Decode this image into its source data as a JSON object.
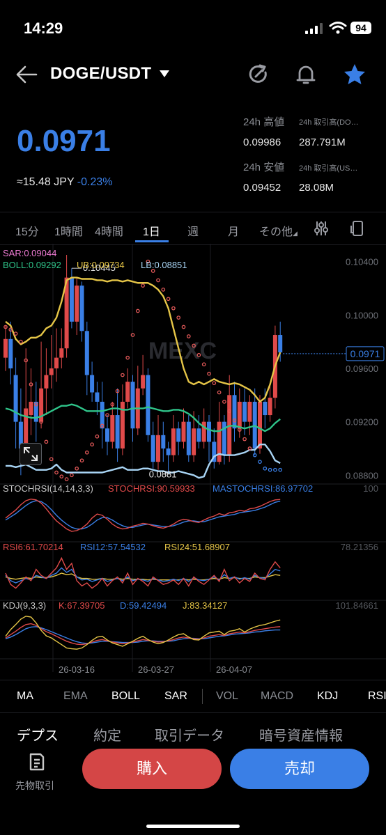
{
  "status_bar": {
    "time": "14:29",
    "battery": "94"
  },
  "header": {
    "pair": "DOGE/USDT"
  },
  "ticker": {
    "price": "0.0971",
    "jpy": "≈15.48 JPY",
    "change": "-0.23%",
    "high_label": "24h 高値",
    "high": "0.09986",
    "low_label": "24h 安値",
    "low": "0.09452",
    "vol1_label": "24h 取引高(DO…",
    "vol1": "287.791M",
    "vol2_label": "24h 取引高(US…",
    "vol2": "28.08M"
  },
  "timeframes": [
    "15分",
    "1時間",
    "4時間",
    "1日",
    "週",
    "月",
    "その他"
  ],
  "active_timeframe": "1日",
  "indicators_bottom": [
    "MA",
    "EMA",
    "BOLL",
    "SAR",
    "VOL",
    "MACD",
    "KDJ",
    "RSI"
  ],
  "bottom_tabs": [
    "デプス",
    "約定",
    "取引データ",
    "暗号資産情報"
  ],
  "actions": {
    "futures": "先物取引",
    "buy": "購入",
    "sell": "売却"
  },
  "colors": {
    "up": "#e04a4a",
    "down": "#3a7fe6",
    "accent": "#3a7fe6",
    "sar": "#e05858",
    "mid": "#2fc48a",
    "ub": "#e5c547",
    "lb": "#a8d4f4"
  },
  "chart_data": {
    "type": "candlestick",
    "main": {
      "legend": {
        "sar": "SAR:0.09044",
        "boll": "BOLL:0.09292",
        "ub": "UB:0.09734",
        "lb": "LB:0.08851"
      },
      "y_ticks": [
        "0.10400",
        "0.10000",
        "0.09600",
        "0.09200",
        "0.08800"
      ],
      "ylim": [
        0.0876,
        0.1045
      ],
      "current_price": "0.0971",
      "high_mark": "0.10445",
      "low_mark": "0.0881",
      "watermark": "MEXC",
      "candles": [
        [
          0.0968,
          0.0982,
          0.0992,
          0.0958
        ],
        [
          0.0982,
          0.096,
          0.0995,
          0.0948
        ],
        [
          0.0955,
          0.092,
          0.0968,
          0.09
        ],
        [
          0.092,
          0.09,
          0.0945,
          0.088
        ],
        [
          0.09,
          0.093,
          0.0975,
          0.0895
        ],
        [
          0.0925,
          0.0935,
          0.096,
          0.091
        ],
        [
          0.0935,
          0.092,
          0.095,
          0.0905
        ],
        [
          0.092,
          0.0945,
          0.098,
          0.0915
        ],
        [
          0.0945,
          0.0955,
          0.0975,
          0.0925
        ],
        [
          0.0955,
          0.096,
          0.0985,
          0.0945
        ],
        [
          0.096,
          0.0968,
          0.099,
          0.095
        ],
        [
          0.0968,
          0.0975,
          0.099,
          0.096
        ],
        [
          0.0975,
          0.1028,
          0.1045,
          0.0968
        ],
        [
          0.1028,
          0.0995,
          0.1035,
          0.099
        ],
        [
          0.0995,
          0.1022,
          0.1028,
          0.0985
        ],
        [
          0.1022,
          0.0988,
          0.1025,
          0.098
        ],
        [
          0.0988,
          0.0955,
          0.0995,
          0.094
        ],
        [
          0.0955,
          0.0942,
          0.0965,
          0.0935
        ],
        [
          0.0942,
          0.0935,
          0.095,
          0.0925
        ],
        [
          0.0935,
          0.0915,
          0.095,
          0.09
        ],
        [
          0.0915,
          0.0905,
          0.0925,
          0.0895
        ],
        [
          0.0905,
          0.0925,
          0.0935,
          0.09
        ],
        [
          0.0925,
          0.09,
          0.0945,
          0.089
        ],
        [
          0.09,
          0.0935,
          0.0948,
          0.0895
        ],
        [
          0.0935,
          0.095,
          0.096,
          0.093
        ],
        [
          0.095,
          0.0915,
          0.0955,
          0.0905
        ],
        [
          0.0915,
          0.0945,
          0.0962,
          0.091
        ],
        [
          0.0945,
          0.0955,
          0.097,
          0.094
        ],
        [
          0.0955,
          0.091,
          0.096,
          0.0905
        ],
        [
          0.091,
          0.089,
          0.092,
          0.0885
        ],
        [
          0.089,
          0.091,
          0.0925,
          0.0884
        ],
        [
          0.091,
          0.09,
          0.092,
          0.089
        ],
        [
          0.09,
          0.0895,
          0.0905,
          0.0881
        ],
        [
          0.0895,
          0.0915,
          0.0925,
          0.089
        ],
        [
          0.0915,
          0.0905,
          0.092,
          0.0895
        ],
        [
          0.0905,
          0.092,
          0.093,
          0.09
        ],
        [
          0.092,
          0.0895,
          0.0925,
          0.089
        ],
        [
          0.0895,
          0.0915,
          0.0928,
          0.089
        ],
        [
          0.0915,
          0.0905,
          0.0925,
          0.09
        ],
        [
          0.0905,
          0.092,
          0.093,
          0.09
        ],
        [
          0.092,
          0.0905,
          0.0925,
          0.089
        ],
        [
          0.0905,
          0.089,
          0.0915,
          0.0885
        ],
        [
          0.089,
          0.092,
          0.0935,
          0.0888
        ],
        [
          0.092,
          0.0895,
          0.0925,
          0.0888
        ],
        [
          0.0895,
          0.094,
          0.0955,
          0.089
        ],
        [
          0.094,
          0.0915,
          0.095,
          0.0905
        ],
        [
          0.0915,
          0.0935,
          0.0945,
          0.0908
        ],
        [
          0.0935,
          0.092,
          0.0945,
          0.091
        ],
        [
          0.092,
          0.0935,
          0.094,
          0.091
        ],
        [
          0.0935,
          0.09,
          0.0945,
          0.0895
        ],
        [
          0.09,
          0.0935,
          0.094,
          0.0896
        ],
        [
          0.0935,
          0.0925,
          0.0945,
          0.0915
        ],
        [
          0.0925,
          0.0938,
          0.0948,
          0.092
        ],
        [
          0.0938,
          0.0985,
          0.0992,
          0.093
        ],
        [
          0.0985,
          0.0972,
          0.0995,
          0.0965
        ]
      ],
      "sar": [
        0.0991,
        0.0989,
        0.0986,
        0.098,
        0.0966,
        0.0948,
        0.0933,
        0.092,
        0.0905,
        0.0892,
        0.0882,
        0.0879,
        0.0877,
        0.088,
        0.0885,
        0.0891,
        0.0897,
        0.0903,
        0.0909,
        0.0917,
        0.0925,
        0.0933,
        0.0943,
        0.0955,
        0.0968,
        0.0985,
        0.1003,
        0.1022,
        0.104,
        0.1033,
        0.1026,
        0.1019,
        0.1012,
        0.1005,
        0.0998,
        0.0991,
        0.0984,
        0.0977,
        0.097,
        0.0963,
        0.0956,
        0.0949,
        0.0942,
        0.0935,
        0.0928,
        0.0921,
        0.0914,
        0.0907,
        0.09,
        0.0895,
        0.089,
        0.0885,
        0.0884,
        0.0884,
        0.0884
      ],
      "mid": [
        0.093,
        0.0929,
        0.0927,
        0.0925,
        0.0924,
        0.0923,
        0.0923,
        0.0924,
        0.0926,
        0.0928,
        0.093,
        0.0932,
        0.0932,
        0.0933,
        0.0932,
        0.093,
        0.0928,
        0.0928,
        0.0928,
        0.0928,
        0.0929,
        0.093,
        0.093,
        0.0929,
        0.0929,
        0.093,
        0.093,
        0.093,
        0.0931,
        0.093,
        0.0929,
        0.0928,
        0.0928,
        0.0929,
        0.0929,
        0.0928,
        0.0926,
        0.0923,
        0.0919,
        0.0916,
        0.0914,
        0.0913,
        0.0913,
        0.0915,
        0.0917,
        0.0917,
        0.0916,
        0.0915,
        0.0916,
        0.0917,
        0.0915,
        0.0913,
        0.0915,
        0.0919,
        0.0922
      ],
      "ub": [
        0.0995,
        0.0992,
        0.0982,
        0.0978,
        0.098,
        0.0983,
        0.0983,
        0.0985,
        0.099,
        0.0992,
        0.0998,
        0.101,
        0.1026,
        0.1028,
        0.1028,
        0.1027,
        0.1027,
        0.1027,
        0.1026,
        0.1026,
        0.1025,
        0.1026,
        0.1026,
        0.1025,
        0.1026,
        0.1025,
        0.1024,
        0.1024,
        0.1024,
        0.1022,
        0.1019,
        0.1014,
        0.1005,
        0.099,
        0.0975,
        0.096,
        0.095,
        0.0948,
        0.095,
        0.0948,
        0.095,
        0.0952,
        0.095,
        0.0949,
        0.0948,
        0.0949,
        0.0948,
        0.0946,
        0.0944,
        0.094,
        0.0935,
        0.0938,
        0.0948,
        0.0962,
        0.0972
      ],
      "lb": [
        0.0887,
        0.0887,
        0.0886,
        0.0887,
        0.0888,
        0.0886,
        0.0884,
        0.0884,
        0.0884,
        0.0885,
        0.0888,
        0.0884,
        0.0882,
        0.0882,
        0.0882,
        0.0882,
        0.0882,
        0.0882,
        0.0882,
        0.0882,
        0.0883,
        0.0884,
        0.0885,
        0.0886,
        0.0884,
        0.0884,
        0.0884,
        0.0885,
        0.0885,
        0.0884,
        0.0883,
        0.0883,
        0.0882,
        0.0882,
        0.0883,
        0.0882,
        0.0881,
        0.088,
        0.0878,
        0.0879,
        0.0888,
        0.0894,
        0.0896,
        0.0895,
        0.0895,
        0.0895,
        0.0896,
        0.0897,
        0.0899,
        0.0899,
        0.0903,
        0.0903,
        0.0898,
        0.0891,
        0.0889
      ]
    },
    "stochrsi": {
      "legend": [
        "STOCHRSI(14,14,3,3)",
        "STOCHRSI:90.59933",
        "MASTOCHRSI:86.97702"
      ],
      "ymax_label": "100",
      "k": [
        45,
        55,
        65,
        78,
        88,
        92,
        90,
        82,
        68,
        52,
        38,
        28,
        18,
        12,
        14,
        20,
        30,
        45,
        55,
        52,
        42,
        30,
        22,
        18,
        20,
        25,
        28,
        32,
        30,
        26,
        22,
        20,
        24,
        30,
        38,
        42,
        40,
        36,
        34,
        40,
        46,
        50,
        56,
        52,
        58,
        60,
        64,
        62,
        68,
        70,
        74,
        80,
        86,
        90,
        91
      ],
      "d": [
        40,
        48,
        56,
        66,
        76,
        84,
        88,
        86,
        78,
        66,
        52,
        40,
        30,
        22,
        18,
        18,
        22,
        30,
        40,
        46,
        46,
        40,
        32,
        26,
        22,
        22,
        25,
        28,
        30,
        28,
        26,
        24,
        24,
        26,
        30,
        35,
        38,
        38,
        36,
        36,
        40,
        44,
        48,
        50,
        52,
        54,
        58,
        60,
        62,
        64,
        68,
        72,
        78,
        84,
        87
      ]
    },
    "rsi": {
      "legend": [
        "RSI6:61.70214",
        "RSI12:57.54532",
        "RSI24:51.68907"
      ],
      "ymax_label": "78.21356",
      "r6": [
        55,
        40,
        35,
        42,
        50,
        45,
        60,
        52,
        48,
        55,
        62,
        75,
        60,
        68,
        45,
        38,
        42,
        35,
        40,
        48,
        38,
        45,
        50,
        42,
        55,
        40,
        48,
        44,
        38,
        50,
        45,
        40,
        42,
        46,
        40,
        48,
        38,
        50,
        44,
        40,
        46,
        52,
        44,
        60,
        45,
        50,
        42,
        48,
        44,
        55,
        48,
        46,
        60,
        70,
        62
      ],
      "r12": [
        52,
        45,
        42,
        45,
        48,
        46,
        52,
        50,
        48,
        52,
        55,
        62,
        56,
        60,
        50,
        46,
        47,
        44,
        46,
        48,
        44,
        46,
        48,
        45,
        50,
        45,
        47,
        46,
        44,
        48,
        46,
        44,
        45,
        47,
        45,
        48,
        44,
        49,
        46,
        45,
        47,
        50,
        46,
        53,
        48,
        50,
        47,
        49,
        47,
        52,
        49,
        48,
        54,
        60,
        58
      ],
      "r24": [
        50,
        48,
        47,
        48,
        49,
        48,
        50,
        49,
        49,
        50,
        52,
        55,
        53,
        54,
        50,
        48,
        48,
        47,
        47,
        48,
        47,
        47,
        48,
        47,
        48,
        47,
        47,
        47,
        46,
        47,
        46,
        46,
        46,
        46,
        46,
        47,
        46,
        47,
        46,
        46,
        47,
        48,
        47,
        49,
        48,
        49,
        48,
        48,
        48,
        50,
        49,
        49,
        51,
        53,
        52
      ]
    },
    "kdj": {
      "legend": [
        "KDJ(9,3,3)",
        "K:67.39705",
        "D:59.42494",
        "J:83.34127"
      ],
      "ymax_label": "101.84661",
      "k": [
        40,
        48,
        56,
        65,
        72,
        74,
        70,
        62,
        55,
        50,
        44,
        38,
        32,
        28,
        25,
        24,
        26,
        30,
        34,
        36,
        33,
        30,
        28,
        26,
        28,
        30,
        33,
        36,
        34,
        32,
        30,
        31,
        33,
        36,
        40,
        42,
        40,
        38,
        37,
        40,
        44,
        46,
        48,
        46,
        50,
        52,
        54,
        52,
        55,
        58,
        60,
        62,
        64,
        66,
        67
      ],
      "d": [
        38,
        42,
        48,
        55,
        62,
        66,
        67,
        64,
        60,
        55,
        50,
        45,
        40,
        35,
        31,
        28,
        27,
        28,
        30,
        32,
        32,
        31,
        30,
        29,
        29,
        29,
        30,
        32,
        33,
        33,
        32,
        32,
        32,
        33,
        36,
        38,
        39,
        39,
        38,
        38,
        40,
        42,
        44,
        45,
        47,
        49,
        50,
        51,
        52,
        54,
        55,
        57,
        58,
        59,
        59
      ],
      "j": [
        44,
        60,
        72,
        85,
        92,
        90,
        76,
        58,
        45,
        40,
        32,
        24,
        16,
        14,
        13,
        16,
        24,
        34,
        42,
        44,
        35,
        28,
        24,
        20,
        26,
        32,
        39,
        44,
        36,
        30,
        26,
        29,
        35,
        42,
        48,
        50,
        42,
        36,
        35,
        44,
        52,
        54,
        56,
        48,
        56,
        58,
        62,
        54,
        61,
        66,
        70,
        72,
        76,
        80,
        83
      ]
    },
    "x_dates": [
      "26-03-16",
      "26-03-27",
      "26-04-07"
    ]
  }
}
